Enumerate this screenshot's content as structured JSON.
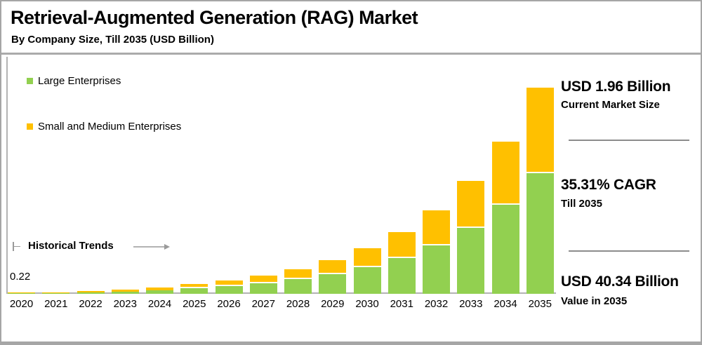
{
  "header": {
    "title": "Retrieval-Augmented Generation (RAG) Market",
    "subtitle": "By Company Size, Till 2035 (USD Billion)"
  },
  "legend": [
    {
      "label": "Large Enterprises",
      "color": "#92D050"
    },
    {
      "label": "Small and Medium Enterprises",
      "color": "#FFC000"
    }
  ],
  "annotations": {
    "historical_trends_label": "Historical Trends",
    "first_bar_value_label": "0.22"
  },
  "stats": [
    {
      "value": "USD 1.96 Billion",
      "label": "Current Market Size"
    },
    {
      "value": "35.31% CAGR",
      "label": "Till 2035"
    },
    {
      "value": "USD 40.34 Billion",
      "label": "Value in 2035"
    }
  ],
  "colors": {
    "large_enterprises": "#92D050",
    "small_medium_enterprises": "#FFC000",
    "axis_gray": "#b3b3b3",
    "divider_gray": "#8c8c8c"
  },
  "chart_data": {
    "type": "bar",
    "stacked": true,
    "title": "Retrieval-Augmented Generation (RAG) Market",
    "subtitle": "By Company Size, Till 2035 (USD Billion)",
    "unit": "USD Billion",
    "categories": [
      "2020",
      "2021",
      "2022",
      "2023",
      "2024",
      "2025",
      "2026",
      "2027",
      "2028",
      "2029",
      "2030",
      "2031",
      "2032",
      "2033",
      "2034",
      "2035"
    ],
    "series": [
      {
        "name": "Large Enterprises",
        "color": "#92D050",
        "values": [
          0.13,
          0.2,
          0.31,
          0.48,
          0.74,
          1.15,
          1.55,
          2.1,
          2.84,
          3.84,
          5.2,
          7.04,
          9.52,
          12.89,
          17.44,
          23.6
        ]
      },
      {
        "name": "Small and Medium Enterprises",
        "color": "#FFC000",
        "values": [
          0.09,
          0.14,
          0.22,
          0.34,
          0.53,
          0.81,
          1.1,
          1.49,
          2.02,
          2.73,
          3.69,
          4.99,
          6.76,
          9.14,
          12.37,
          16.74
        ]
      }
    ],
    "totals": [
      0.22,
      0.34,
      0.53,
      0.82,
      1.27,
      1.96,
      2.65,
      3.59,
      4.86,
      6.57,
      8.89,
      12.03,
      16.28,
      22.03,
      29.81,
      40.34
    ],
    "annotations": {
      "first_bar_value": "0.22",
      "historical_trends_span": [
        "2020",
        "2024"
      ],
      "current_market_size": "USD 1.96 Billion",
      "cagr": "35.31% CAGR Till 2035",
      "value_2035": "USD 40.34 Billion"
    },
    "ylim": [
      0,
      42
    ],
    "grid": false,
    "legend_position": "top-left",
    "xlabel": "",
    "ylabel": "USD Billion"
  }
}
